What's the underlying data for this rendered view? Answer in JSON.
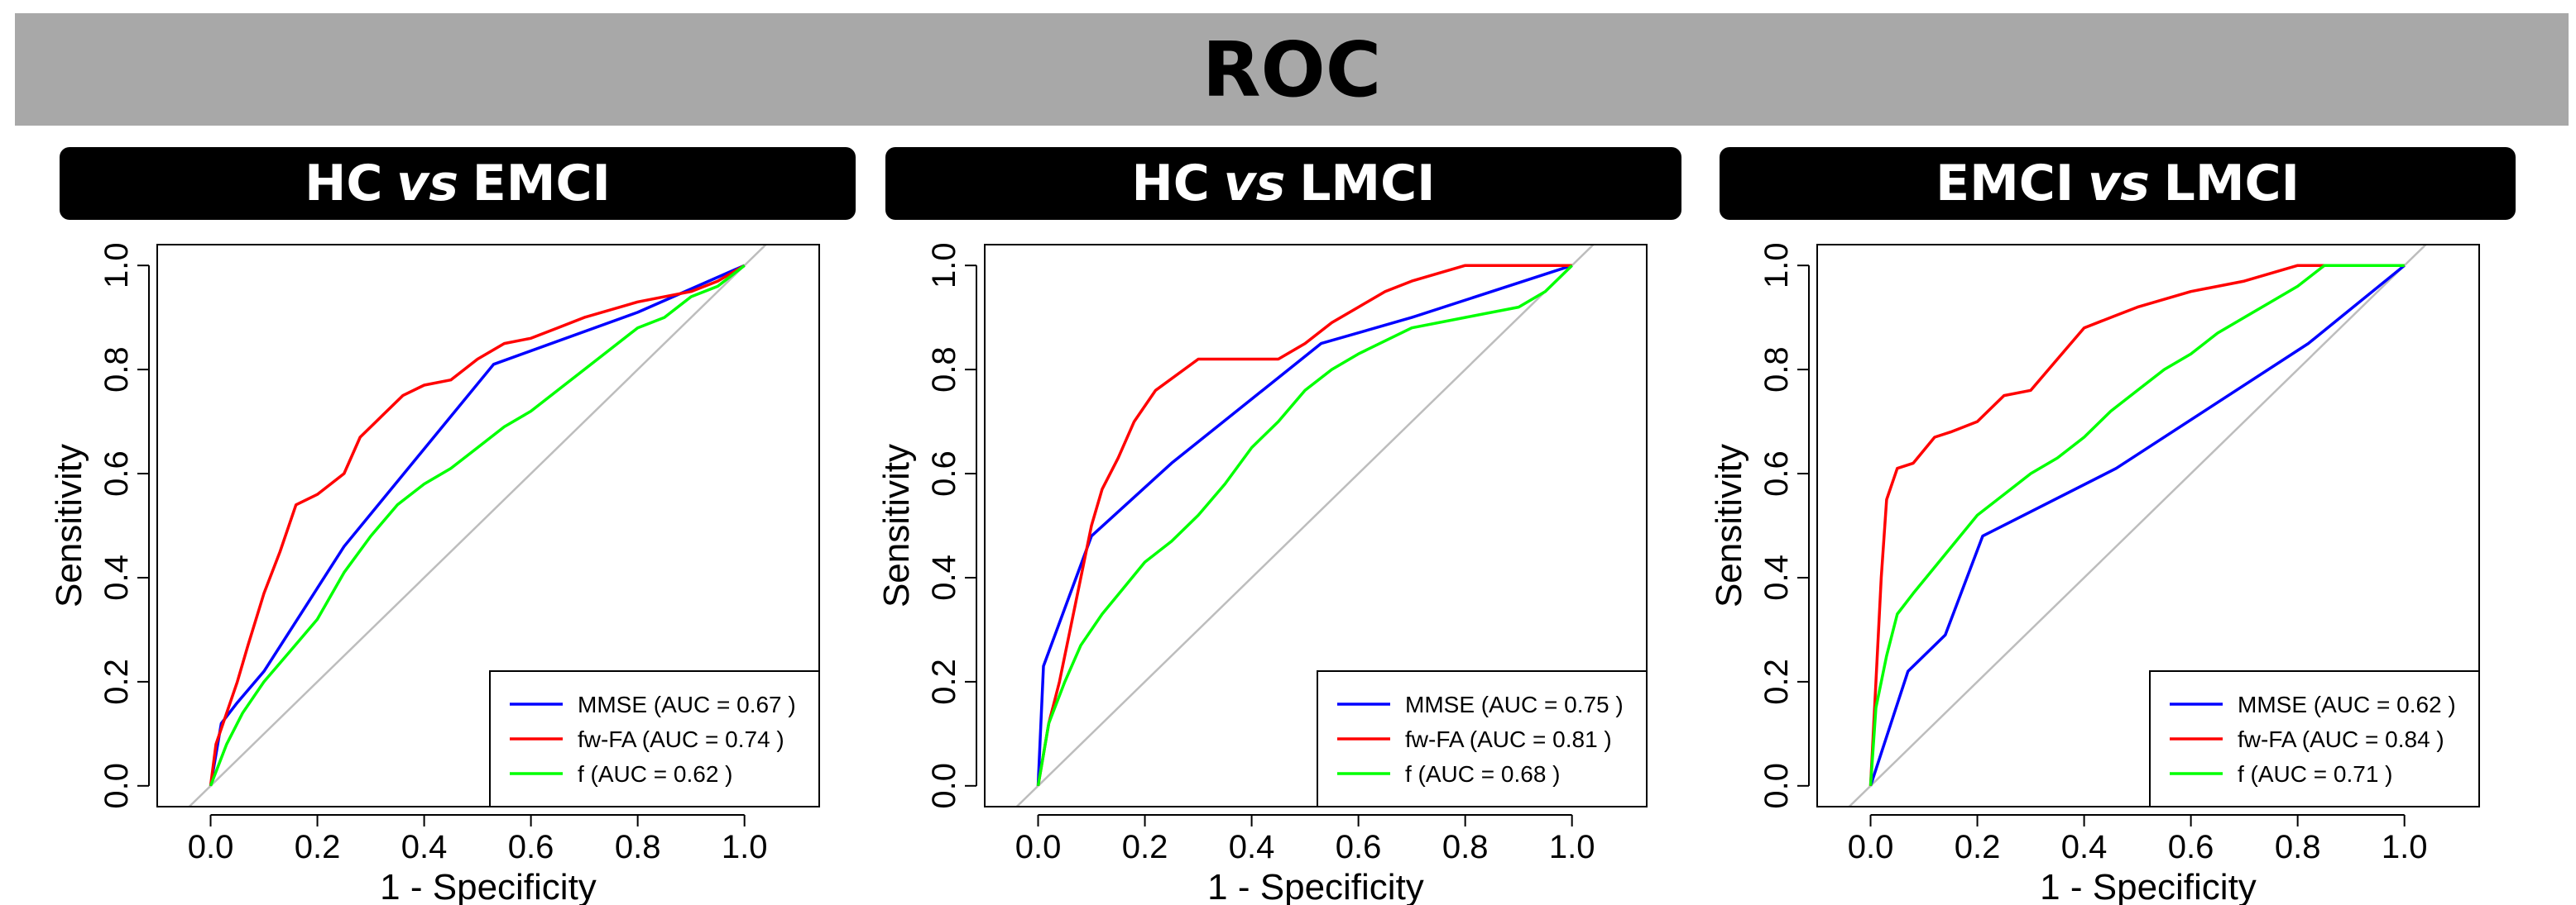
{
  "page_title": "ROC",
  "chart_data": [
    {
      "type": "line",
      "panel_title": {
        "left": "HC",
        "vs": "vs",
        "right": "EMCI"
      },
      "xlabel": "1 - Specificity",
      "ylabel": "Sensitivity",
      "xlim": [
        -0.1,
        1.14
      ],
      "ylim": [
        -0.04,
        1.04
      ],
      "xticks": [
        "0.0",
        "0.2",
        "0.4",
        "0.6",
        "0.8",
        "1.0"
      ],
      "yticks": [
        "0.0",
        "0.2",
        "0.4",
        "0.6",
        "0.8",
        "1.0"
      ],
      "legend_position": "bottom-right",
      "series": [
        {
          "name": "MMSE (AUC = 0.67 )",
          "color": "#0000ff",
          "x": [
            0,
            0.02,
            0.05,
            0.1,
            0.15,
            0.25,
            0.53,
            0.8,
            1.0
          ],
          "y": [
            0,
            0.12,
            0.16,
            0.22,
            0.3,
            0.46,
            0.81,
            0.91,
            1.0
          ]
        },
        {
          "name": "fw-FA (AUC = 0.74 )",
          "color": "#ff0000",
          "x": [
            0,
            0.01,
            0.03,
            0.05,
            0.07,
            0.1,
            0.13,
            0.16,
            0.2,
            0.25,
            0.28,
            0.32,
            0.36,
            0.4,
            0.45,
            0.5,
            0.55,
            0.6,
            0.65,
            0.7,
            0.8,
            0.9,
            0.95,
            1.0
          ],
          "y": [
            0,
            0.08,
            0.14,
            0.2,
            0.27,
            0.37,
            0.45,
            0.54,
            0.56,
            0.6,
            0.67,
            0.71,
            0.75,
            0.77,
            0.78,
            0.82,
            0.85,
            0.86,
            0.88,
            0.9,
            0.93,
            0.95,
            0.97,
            1.0
          ]
        },
        {
          "name": "f (AUC = 0.62 )",
          "color": "#00ff00",
          "x": [
            0,
            0.03,
            0.06,
            0.1,
            0.15,
            0.2,
            0.25,
            0.3,
            0.35,
            0.4,
            0.45,
            0.5,
            0.55,
            0.6,
            0.65,
            0.7,
            0.75,
            0.8,
            0.85,
            0.9,
            0.95,
            1.0
          ],
          "y": [
            0,
            0.08,
            0.14,
            0.2,
            0.26,
            0.32,
            0.41,
            0.48,
            0.54,
            0.58,
            0.61,
            0.65,
            0.69,
            0.72,
            0.76,
            0.8,
            0.84,
            0.88,
            0.9,
            0.94,
            0.96,
            1.0
          ]
        }
      ]
    },
    {
      "type": "line",
      "panel_title": {
        "left": "HC",
        "vs": "vs",
        "right": "LMCI"
      },
      "xlabel": "1 - Specificity",
      "ylabel": "Sensitivity",
      "xlim": [
        -0.1,
        1.14
      ],
      "ylim": [
        -0.04,
        1.04
      ],
      "xticks": [
        "0.0",
        "0.2",
        "0.4",
        "0.6",
        "0.8",
        "1.0"
      ],
      "yticks": [
        "0.0",
        "0.2",
        "0.4",
        "0.6",
        "0.8",
        "1.0"
      ],
      "legend_position": "bottom-right",
      "series": [
        {
          "name": "MMSE (AUC = 0.75 )",
          "color": "#0000ff",
          "x": [
            0,
            0.01,
            0.1,
            0.25,
            0.53,
            0.7,
            1.0
          ],
          "y": [
            0,
            0.23,
            0.48,
            0.62,
            0.85,
            0.9,
            1.0
          ]
        },
        {
          "name": "fw-FA (AUC = 0.81 )",
          "color": "#ff0000",
          "x": [
            0,
            0.02,
            0.04,
            0.07,
            0.1,
            0.12,
            0.15,
            0.18,
            0.22,
            0.3,
            0.45,
            0.5,
            0.55,
            0.6,
            0.65,
            0.7,
            0.8,
            0.9,
            1.0
          ],
          "y": [
            0,
            0.12,
            0.2,
            0.35,
            0.5,
            0.57,
            0.63,
            0.7,
            0.76,
            0.82,
            0.82,
            0.85,
            0.89,
            0.92,
            0.95,
            0.97,
            1.0,
            1.0,
            1.0
          ]
        },
        {
          "name": "f (AUC = 0.68 )",
          "color": "#00ff00",
          "x": [
            0,
            0.02,
            0.05,
            0.08,
            0.12,
            0.16,
            0.2,
            0.25,
            0.3,
            0.35,
            0.4,
            0.45,
            0.5,
            0.55,
            0.6,
            0.7,
            0.8,
            0.9,
            0.95,
            1.0
          ],
          "y": [
            0,
            0.12,
            0.2,
            0.27,
            0.33,
            0.38,
            0.43,
            0.47,
            0.52,
            0.58,
            0.65,
            0.7,
            0.76,
            0.8,
            0.83,
            0.88,
            0.9,
            0.92,
            0.95,
            1.0
          ]
        }
      ]
    },
    {
      "type": "line",
      "panel_title": {
        "left": "EMCI",
        "vs": "vs",
        "right": "LMCI"
      },
      "xlabel": "1 - Specificity",
      "ylabel": "Sensitivity",
      "xlim": [
        -0.1,
        1.14
      ],
      "ylim": [
        -0.04,
        1.04
      ],
      "xticks": [
        "0.0",
        "0.2",
        "0.4",
        "0.6",
        "0.8",
        "1.0"
      ],
      "yticks": [
        "0.0",
        "0.2",
        "0.4",
        "0.6",
        "0.8",
        "1.0"
      ],
      "legend_position": "bottom-right",
      "series": [
        {
          "name": "MMSE (AUC = 0.62 )",
          "color": "#0000ff",
          "x": [
            0,
            0.07,
            0.14,
            0.21,
            0.46,
            0.82,
            1.0
          ],
          "y": [
            0,
            0.22,
            0.29,
            0.48,
            0.61,
            0.85,
            1.0
          ]
        },
        {
          "name": "fw-FA (AUC = 0.84 )",
          "color": "#ff0000",
          "x": [
            0,
            0.01,
            0.02,
            0.03,
            0.05,
            0.08,
            0.12,
            0.15,
            0.2,
            0.25,
            0.3,
            0.35,
            0.4,
            0.45,
            0.5,
            0.6,
            0.7,
            0.8,
            0.9,
            1.0
          ],
          "y": [
            0,
            0.2,
            0.4,
            0.55,
            0.61,
            0.62,
            0.67,
            0.68,
            0.7,
            0.75,
            0.76,
            0.82,
            0.88,
            0.9,
            0.92,
            0.95,
            0.97,
            1.0,
            1.0,
            1.0
          ]
        },
        {
          "name": "f (AUC = 0.71 )",
          "color": "#00ff00",
          "x": [
            0,
            0.01,
            0.03,
            0.05,
            0.08,
            0.12,
            0.16,
            0.2,
            0.25,
            0.3,
            0.35,
            0.4,
            0.45,
            0.5,
            0.55,
            0.6,
            0.65,
            0.7,
            0.75,
            0.8,
            0.85,
            1.0
          ],
          "y": [
            0,
            0.15,
            0.25,
            0.33,
            0.37,
            0.42,
            0.47,
            0.52,
            0.56,
            0.6,
            0.63,
            0.67,
            0.72,
            0.76,
            0.8,
            0.83,
            0.87,
            0.9,
            0.93,
            0.96,
            1.0,
            1.0
          ]
        }
      ]
    }
  ]
}
